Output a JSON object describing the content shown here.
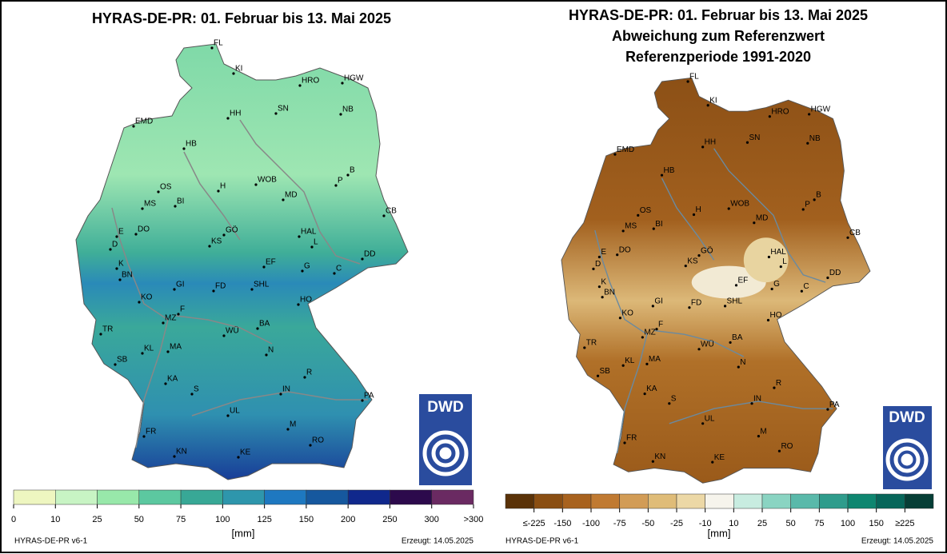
{
  "left_panel": {
    "title": "HYRAS-DE-PR: 01. Februar bis 13. Mai 2025",
    "legend": {
      "colors": [
        "#eef6c0",
        "#c8f4c4",
        "#98e8aa",
        "#5cc8a0",
        "#38a896",
        "#2e96ac",
        "#1e78c0",
        "#16589e",
        "#10288c",
        "#2c0a4c",
        "#6a2a62"
      ],
      "labels": [
        "0",
        "10",
        "25",
        "50",
        "75",
        "100",
        "125",
        "150",
        "200",
        "250",
        "300",
        ">300"
      ]
    },
    "unit": "[mm]",
    "version": "HYRAS-DE-PR v6-1",
    "created": "Erzeugt: 14.05.2025",
    "logo": "DWD"
  },
  "right_panel": {
    "title_lines": [
      "HYRAS-DE-PR: 01. Februar bis 13. Mai 2025",
      "Abweichung zum Referenzwert",
      "Referenzperiode 1991-2020"
    ],
    "legend": {
      "colors": [
        "#5a3208",
        "#8a4e12",
        "#a8621e",
        "#c07a32",
        "#d29c56",
        "#dfbc78",
        "#ecd8a6",
        "#f6f4ec",
        "#c8ece0",
        "#8ad4c2",
        "#5ab9aa",
        "#2f9c8c",
        "#0e8670",
        "#07665a",
        "#063e36"
      ],
      "labels": [
        "≤-225",
        "-150",
        "-100",
        "-75",
        "-50",
        "-25",
        "-10",
        "10",
        "25",
        "50",
        "75",
        "100",
        "150",
        "≥225"
      ]
    },
    "unit": "[mm]",
    "version": "HYRAS-DE-PR v6-1",
    "created": "Erzeugt: 14.05.2025",
    "logo": "DWD"
  },
  "cities": [
    "FL",
    "KI",
    "HRO",
    "HGW",
    "SN",
    "NB",
    "EMD",
    "HH",
    "HB",
    "B",
    "P",
    "OS",
    "H",
    "WOB",
    "MD",
    "MS",
    "BI",
    "CB",
    "E",
    "DO",
    "GÖ",
    "HAL",
    "D",
    "KS",
    "L",
    "K",
    "EF",
    "DD",
    "G",
    "C",
    "BN",
    "GI",
    "FD",
    "SHL",
    "KO",
    "HO",
    "F",
    "MZ",
    "TR",
    "WÜ",
    "BA",
    "KL",
    "MA",
    "N",
    "SB",
    "KA",
    "R",
    "IN",
    "S",
    "PA",
    "UL",
    "M",
    "FR",
    "RO",
    "KN",
    "KE"
  ]
}
